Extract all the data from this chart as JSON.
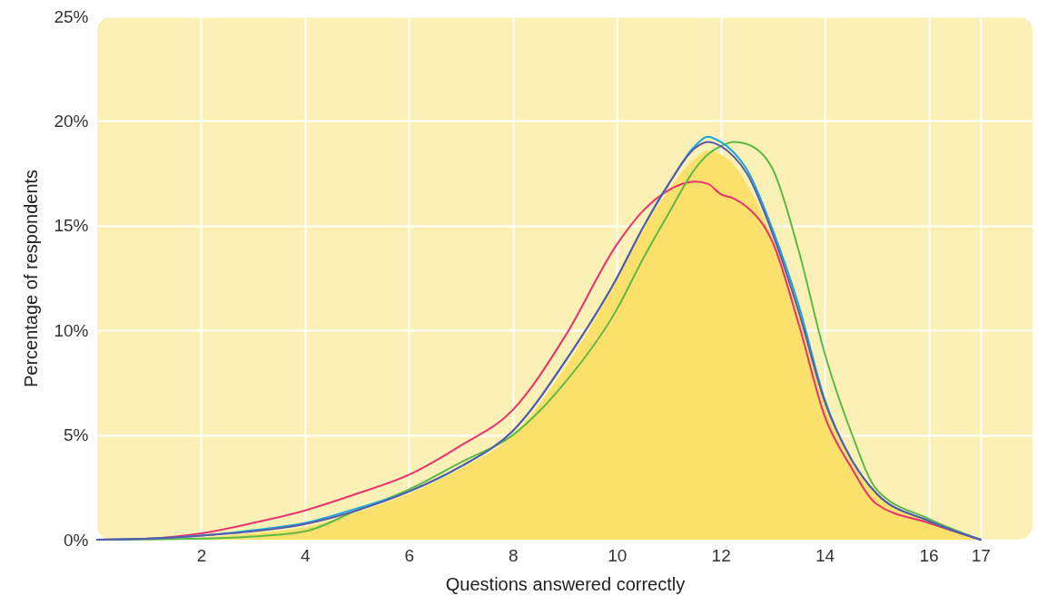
{
  "chart_data": {
    "type": "line",
    "xlabel": "Questions answered correctly",
    "ylabel": "Percentage of respondents",
    "x": [
      0,
      1,
      2,
      3,
      4,
      5,
      6,
      7,
      8,
      9,
      10,
      10.5,
      11,
      11.5,
      11.75,
      12,
      12.25,
      12.5,
      13,
      13.5,
      14,
      14.5,
      15,
      16,
      17
    ],
    "series": [
      {
        "type": "area",
        "color": "#fbe16c",
        "values": [
          0,
          0.02,
          0.1,
          0.3,
          0.6,
          1.3,
          2.2,
          3.4,
          5.0,
          8.2,
          12.4,
          14.8,
          16.7,
          18.2,
          18.6,
          18.4,
          17.9,
          17.0,
          14.4,
          10.8,
          6.5,
          3.8,
          2.2,
          0.9,
          0
        ]
      },
      {
        "color": "#e8336e",
        "values": [
          0,
          0.05,
          0.3,
          0.8,
          1.4,
          2.2,
          3.1,
          4.5,
          6.2,
          9.7,
          14.1,
          15.7,
          16.7,
          17.1,
          17.0,
          16.5,
          16.3,
          15.9,
          14.2,
          10.3,
          5.9,
          3.5,
          1.7,
          0.8,
          0
        ]
      },
      {
        "color": "#5cb946",
        "values": [
          0,
          0.01,
          0.05,
          0.15,
          0.4,
          1.4,
          2.4,
          3.7,
          5.0,
          7.5,
          11.0,
          13.4,
          15.6,
          17.7,
          18.4,
          18.8,
          19.0,
          18.9,
          17.7,
          13.8,
          8.9,
          5.2,
          2.4,
          1.0,
          0
        ]
      },
      {
        "color": "#1aa7e0",
        "values": [
          0,
          0.05,
          0.2,
          0.45,
          0.8,
          1.5,
          2.3,
          3.5,
          5.2,
          8.5,
          12.5,
          14.9,
          17.0,
          18.8,
          19.25,
          19.0,
          18.5,
          17.7,
          14.8,
          11.2,
          6.7,
          3.9,
          2.2,
          0.9,
          0
        ]
      },
      {
        "color": "#5a5aa8",
        "values": [
          0,
          0.05,
          0.2,
          0.4,
          0.75,
          1.4,
          2.3,
          3.5,
          5.2,
          8.5,
          12.5,
          14.9,
          17.0,
          18.7,
          19.0,
          18.8,
          18.3,
          17.5,
          14.6,
          10.9,
          6.6,
          3.9,
          2.2,
          0.9,
          0
        ]
      }
    ],
    "xlim": [
      0,
      18
    ],
    "xticks": [
      2,
      4,
      6,
      8,
      10,
      12,
      14,
      16,
      17
    ],
    "ylim": [
      0,
      25
    ],
    "yticks": [
      {
        "value": 0,
        "label": "0%"
      },
      {
        "value": 5,
        "label": "5%"
      },
      {
        "value": 10,
        "label": "10%"
      },
      {
        "value": 15,
        "label": "15%"
      },
      {
        "value": 20,
        "label": "20%"
      },
      {
        "value": 25,
        "label": "25%"
      }
    ],
    "grid": true
  }
}
